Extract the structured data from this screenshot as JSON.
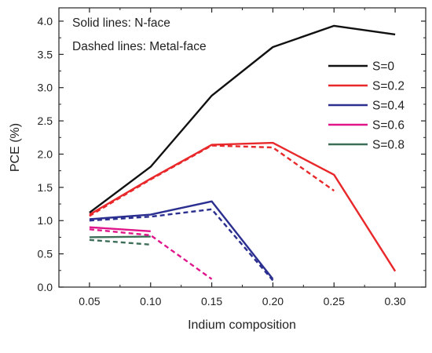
{
  "chart_data": {
    "type": "line",
    "xlabel": "Indium composition",
    "ylabel": "PCE (%)",
    "x": [
      0.05,
      0.1,
      0.15,
      0.2,
      0.25,
      0.3
    ],
    "x_tick_labels": [
      "0.05",
      "0.10",
      "0.15",
      "0.20",
      "0.25",
      "0.30"
    ],
    "xlim": [
      0.025,
      0.325
    ],
    "ylim": [
      0,
      4.2
    ],
    "y_ticks": [
      0.0,
      0.5,
      1.0,
      1.5,
      2.0,
      2.5,
      3.0,
      3.5,
      4.0
    ],
    "y_tick_labels": [
      "0.0",
      "0.5",
      "1.0",
      "1.5",
      "2.0",
      "2.5",
      "3.0",
      "3.5",
      "4.0"
    ],
    "grid": false,
    "annotations": [
      "Solid lines: N-face",
      "Dashed lines: Metal-face"
    ],
    "legend_position": "top-right",
    "legend": [
      {
        "label": "S=0",
        "color": "#111111"
      },
      {
        "label": "S=0.2",
        "color": "#e8282a"
      },
      {
        "label": "S=0.4",
        "color": "#2b2f8f"
      },
      {
        "label": "S=0.6",
        "color": "#e0158a"
      },
      {
        "label": "S=0.8",
        "color": "#3c6e58"
      }
    ],
    "series": [
      {
        "name": "S=0",
        "style": "solid",
        "color": "#111111",
        "points": [
          [
            0.05,
            1.12
          ],
          [
            0.1,
            1.81
          ],
          [
            0.15,
            2.88
          ],
          [
            0.2,
            3.61
          ],
          [
            0.25,
            3.93
          ],
          [
            0.3,
            3.8
          ]
        ]
      },
      {
        "name": "S=0.2",
        "style": "solid",
        "color": "#e8282a",
        "points": [
          [
            0.05,
            1.09
          ],
          [
            0.1,
            1.63
          ],
          [
            0.15,
            2.14
          ],
          [
            0.2,
            2.17
          ],
          [
            0.25,
            1.69
          ],
          [
            0.3,
            0.24
          ]
        ]
      },
      {
        "name": "S=0.2",
        "style": "dashed",
        "color": "#e8282a",
        "points": [
          [
            0.05,
            1.07
          ],
          [
            0.1,
            1.62
          ],
          [
            0.15,
            2.13
          ],
          [
            0.2,
            2.1
          ],
          [
            0.25,
            1.45
          ]
        ]
      },
      {
        "name": "S=0.4",
        "style": "solid",
        "color": "#2b2f8f",
        "points": [
          [
            0.05,
            1.02
          ],
          [
            0.1,
            1.09
          ],
          [
            0.15,
            1.29
          ],
          [
            0.2,
            0.12
          ]
        ]
      },
      {
        "name": "S=0.4",
        "style": "dashed",
        "color": "#2b2f8f",
        "points": [
          [
            0.05,
            1.0
          ],
          [
            0.1,
            1.06
          ],
          [
            0.15,
            1.17
          ],
          [
            0.2,
            0.1
          ]
        ]
      },
      {
        "name": "S=0.6",
        "style": "solid",
        "color": "#e0158a",
        "points": [
          [
            0.05,
            0.9
          ],
          [
            0.1,
            0.84
          ]
        ]
      },
      {
        "name": "S=0.6",
        "style": "dashed",
        "color": "#e0158a",
        "points": [
          [
            0.05,
            0.87
          ],
          [
            0.1,
            0.78
          ],
          [
            0.15,
            0.12
          ]
        ]
      },
      {
        "name": "S=0.8",
        "style": "solid",
        "color": "#3c6e58",
        "points": [
          [
            0.05,
            0.75
          ],
          [
            0.1,
            0.76
          ]
        ]
      },
      {
        "name": "S=0.8",
        "style": "dashed",
        "color": "#3c6e58",
        "points": [
          [
            0.05,
            0.71
          ],
          [
            0.1,
            0.64
          ]
        ]
      }
    ]
  }
}
